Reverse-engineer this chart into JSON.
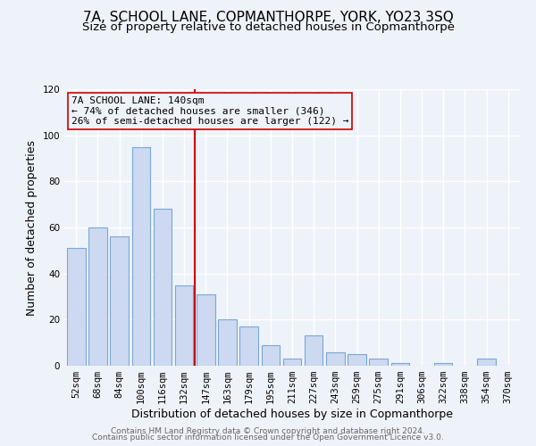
{
  "title": "7A, SCHOOL LANE, COPMANTHORPE, YORK, YO23 3SQ",
  "subtitle": "Size of property relative to detached houses in Copmanthorpe",
  "xlabel": "Distribution of detached houses by size in Copmanthorpe",
  "ylabel": "Number of detached properties",
  "bin_labels": [
    "52sqm",
    "68sqm",
    "84sqm",
    "100sqm",
    "116sqm",
    "132sqm",
    "147sqm",
    "163sqm",
    "179sqm",
    "195sqm",
    "211sqm",
    "227sqm",
    "243sqm",
    "259sqm",
    "275sqm",
    "291sqm",
    "306sqm",
    "322sqm",
    "338sqm",
    "354sqm",
    "370sqm"
  ],
  "bar_heights": [
    51,
    60,
    56,
    95,
    68,
    35,
    31,
    20,
    17,
    9,
    3,
    13,
    6,
    5,
    3,
    1,
    0,
    1,
    0,
    3,
    0
  ],
  "bar_color": "#ccd9f0",
  "bar_edge_color": "#7ba7d4",
  "vline_color": "#cc0000",
  "annotation_line1": "7A SCHOOL LANE: 140sqm",
  "annotation_line2": "← 74% of detached houses are smaller (346)",
  "annotation_line3": "26% of semi-detached houses are larger (122) →",
  "annotation_box_color": "#cc0000",
  "ylim": [
    0,
    120
  ],
  "yticks": [
    0,
    20,
    40,
    60,
    80,
    100,
    120
  ],
  "footer1": "Contains HM Land Registry data © Crown copyright and database right 2024.",
  "footer2": "Contains public sector information licensed under the Open Government Licence v3.0.",
  "background_color": "#eef2f9",
  "grid_color": "#ffffff",
  "title_fontsize": 11,
  "subtitle_fontsize": 9.5,
  "axis_label_fontsize": 9,
  "tick_fontsize": 7.5,
  "annotation_fontsize": 8,
  "footer_fontsize": 6.5
}
